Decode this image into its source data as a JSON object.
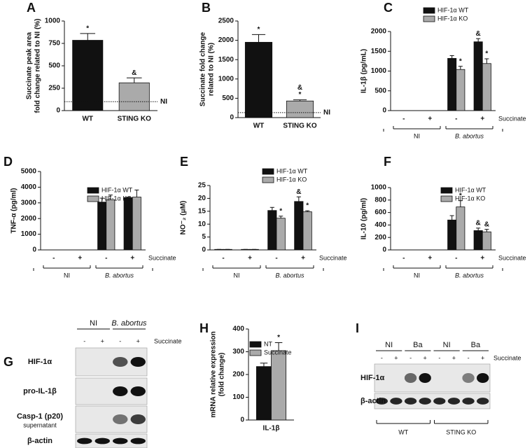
{
  "chart_data": [
    {
      "panel": "A",
      "type": "bar",
      "ylabel": [
        "Succinate peak area",
        "fold change related to NI (%)"
      ],
      "categories": [
        "WT",
        "STING KO"
      ],
      "ylim": [
        0,
        1000
      ],
      "yticks": [
        0,
        250,
        500,
        750,
        1000
      ],
      "reference_line": {
        "value": 100,
        "label": "NI"
      },
      "series": [
        {
          "colors": [
            "#111111",
            "#aaaaaa"
          ],
          "values": [
            785,
            310
          ],
          "errors": [
            75,
            55
          ],
          "annotations": [
            [
              "*"
            ],
            [
              "&"
            ]
          ]
        }
      ]
    },
    {
      "panel": "B",
      "type": "bar",
      "ylabel": [
        "Succinate fold change",
        "related to NI (%)"
      ],
      "categories": [
        "WT",
        "STING KO"
      ],
      "ylim": [
        0,
        2500
      ],
      "yticks": [
        0,
        500,
        1000,
        1500,
        2000,
        2500
      ],
      "reference_line": {
        "value": 130,
        "label": "NI"
      },
      "series": [
        {
          "colors": [
            "#111111",
            "#aaaaaa"
          ],
          "values": [
            1950,
            430
          ],
          "errors": [
            200,
            30
          ],
          "annotations": [
            [
              "*"
            ],
            [
              "*",
              "&"
            ]
          ]
        }
      ]
    },
    {
      "panel": "C",
      "type": "bar",
      "ylabel": [
        "IL-1β (pg/mL)"
      ],
      "categories": [
        "-",
        "+",
        "-",
        "+"
      ],
      "groups": [
        "NI",
        "B. abortus"
      ],
      "treatment_label": "Succinate",
      "ylim": [
        0,
        2000
      ],
      "yticks": [
        0,
        500,
        1000,
        1500,
        2000
      ],
      "series": [
        {
          "name": "HIF-1α WT",
          "color": "#111111",
          "values": [
            0,
            0,
            1320,
            1740
          ],
          "errors": [
            0,
            0,
            70,
            80
          ],
          "annotations": [
            null,
            null,
            null,
            [
              "&"
            ]
          ]
        },
        {
          "name": "HIF-1α KO",
          "color": "#aaaaaa",
          "values": [
            0,
            0,
            1040,
            1190
          ],
          "errors": [
            0,
            0,
            80,
            120
          ],
          "annotations": [
            null,
            null,
            [
              "*"
            ],
            [
              "*"
            ]
          ]
        }
      ]
    },
    {
      "panel": "D",
      "type": "bar",
      "ylabel": [
        "TNF-α (pg/ml)"
      ],
      "categories": [
        "-",
        "+",
        "-",
        "+"
      ],
      "groups": [
        "NI",
        "B. abortus"
      ],
      "treatment_label": "Succinate",
      "ylim": [
        0,
        5000
      ],
      "yticks": [
        0,
        1000,
        2000,
        3000,
        4000,
        5000
      ],
      "series": [
        {
          "name": "HIF-1α WT",
          "color": "#111111",
          "values": [
            0,
            0,
            3050,
            3330
          ],
          "errors": [
            0,
            0,
            250,
            30
          ]
        },
        {
          "name": "HIF-1α KO",
          "color": "#aaaaaa",
          "values": [
            0,
            0,
            3200,
            3370
          ],
          "errors": [
            0,
            0,
            300,
            450
          ]
        }
      ]
    },
    {
      "panel": "E",
      "type": "bar",
      "ylabel": [
        "NO⁻₂ (μM)"
      ],
      "categories": [
        "-",
        "+",
        "-",
        "+"
      ],
      "groups": [
        "NI",
        "B. abortus"
      ],
      "treatment_label": "Succinate",
      "ylim": [
        0,
        25
      ],
      "yticks": [
        0,
        5,
        10,
        15,
        20,
        25
      ],
      "series": [
        {
          "name": "HIF-1α WT",
          "color": "#111111",
          "values": [
            0.2,
            0.2,
            15.3,
            18.8
          ],
          "errors": [
            0,
            0,
            1.2,
            1.8
          ],
          "annotations": [
            null,
            null,
            null,
            [
              "&"
            ]
          ]
        },
        {
          "name": "HIF-1α KO",
          "color": "#aaaaaa",
          "values": [
            0.2,
            0.2,
            12.3,
            14.8
          ],
          "errors": [
            0,
            0,
            0.8,
            0.4
          ],
          "annotations": [
            null,
            null,
            [
              "*"
            ],
            [
              "*"
            ]
          ]
        }
      ]
    },
    {
      "panel": "F",
      "type": "bar",
      "ylabel": [
        "IL-10 (pg/ml)"
      ],
      "categories": [
        "-",
        "+",
        "-",
        "+"
      ],
      "groups": [
        "NI",
        "B. abortus"
      ],
      "treatment_label": "Succinate",
      "ylim": [
        0,
        1000
      ],
      "yticks": [
        0,
        200,
        400,
        600,
        800,
        1000
      ],
      "series": [
        {
          "name": "HIF-1α WT",
          "color": "#111111",
          "values": [
            0,
            0,
            480,
            310
          ],
          "errors": [
            0,
            0,
            70,
            40
          ],
          "annotations": [
            null,
            null,
            null,
            [
              "&"
            ]
          ]
        },
        {
          "name": "HIF-1α KO",
          "color": "#aaaaaa",
          "values": [
            0,
            0,
            690,
            290
          ],
          "errors": [
            0,
            0,
            100,
            40
          ],
          "annotations": [
            null,
            null,
            [
              "*"
            ],
            [
              "&"
            ]
          ]
        }
      ]
    },
    {
      "panel": "H",
      "type": "bar",
      "ylabel": [
        "mRNA relative expression",
        "(fold change)"
      ],
      "categories": [
        "IL-1β"
      ],
      "ylim": [
        0,
        400
      ],
      "yticks": [
        0,
        100,
        200,
        300,
        400
      ],
      "series": [
        {
          "name": "NT",
          "color": "#111111",
          "values": [
            235
          ],
          "errors": [
            15
          ]
        },
        {
          "name": "Succinate",
          "color": "#aaaaaa",
          "values": [
            305
          ],
          "errors": [
            35
          ],
          "annotations": [
            [
              "*"
            ]
          ]
        }
      ]
    }
  ],
  "blots": [
    {
      "panel": "G",
      "groups": [
        {
          "label": "NI",
          "lanes": [
            "-",
            "+"
          ]
        },
        {
          "label": "B. abortus",
          "lanes": [
            "-",
            "+"
          ]
        }
      ],
      "treatment_label": "Succinate",
      "rows": [
        {
          "label": "HIF-1α"
        },
        {
          "label": "pro-IL-1β"
        },
        {
          "label": "Casp-1 (p20)",
          "sublabel": "supernatant"
        },
        {
          "label": "β-actin"
        }
      ]
    },
    {
      "panel": "I",
      "groups": [
        {
          "label": "NI",
          "lanes": [
            "-",
            "+"
          ]
        },
        {
          "label": "Ba",
          "lanes": [
            "-",
            "+"
          ]
        },
        {
          "label": "NI",
          "lanes": [
            "-",
            "+"
          ]
        },
        {
          "label": "Ba",
          "lanes": [
            "-",
            "+"
          ]
        }
      ],
      "treatment_label": "Succinate",
      "rows": [
        {
          "label": "HIF-1α"
        },
        {
          "label": "β-actin"
        }
      ],
      "genotypes": [
        "WT",
        "STING KO"
      ]
    }
  ]
}
